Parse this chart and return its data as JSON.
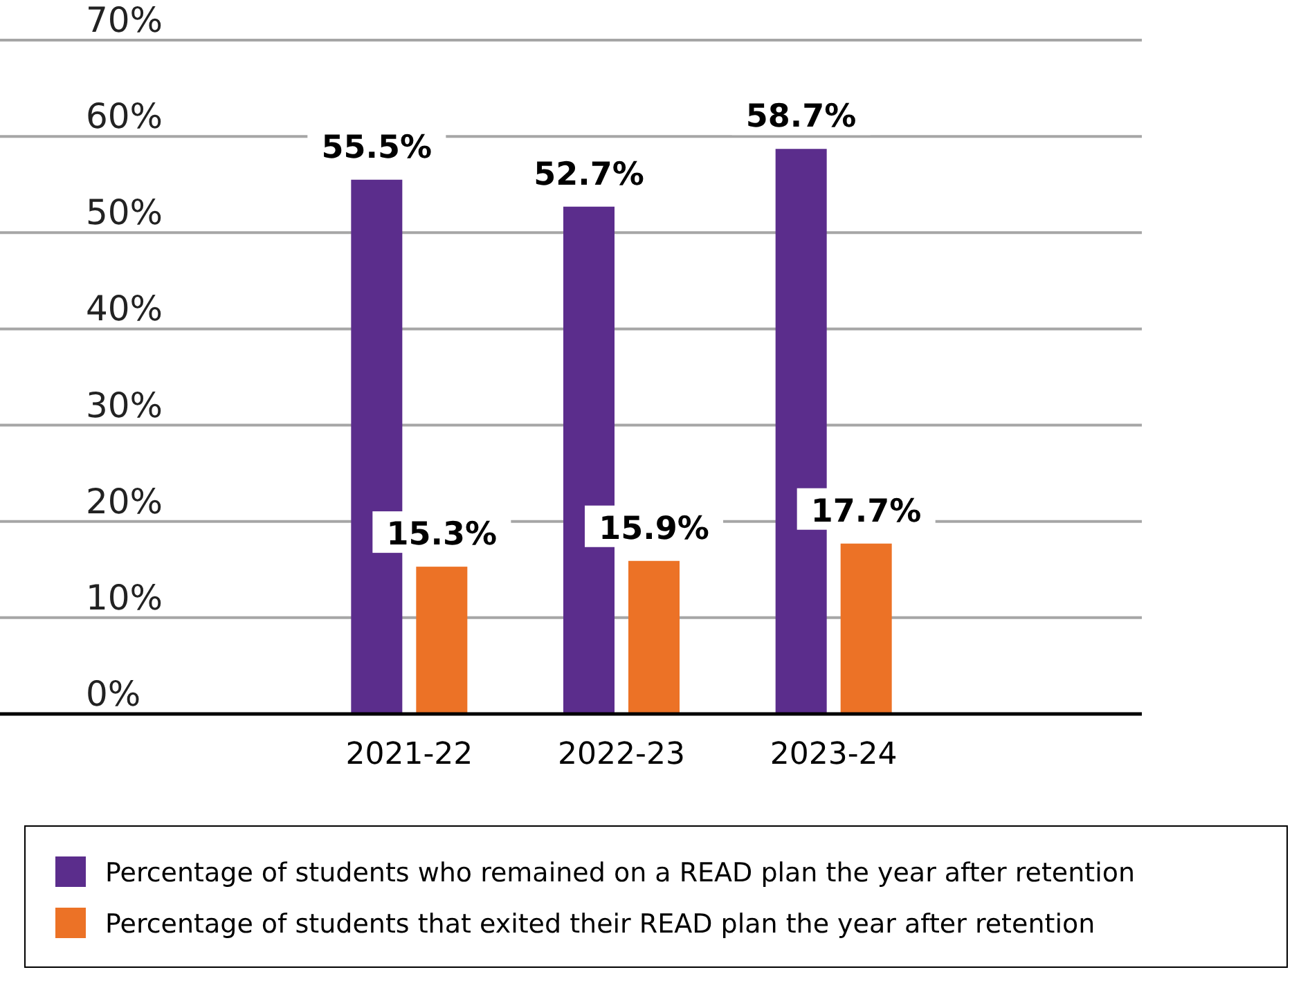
{
  "chart_data": {
    "type": "bar",
    "categories": [
      "2021-22",
      "2022-23",
      "2023-24"
    ],
    "series": [
      {
        "name": "Percentage of students who remained on a READ plan the year after retention",
        "color": "#5b2d8c",
        "values": [
          55.5,
          52.7,
          58.7
        ],
        "value_labels": [
          "55.5%",
          "52.7%",
          "58.7%"
        ]
      },
      {
        "name": "Percentage of students that exited their READ plan the year after retention",
        "color": "#ec7226",
        "values": [
          15.3,
          15.9,
          17.7
        ],
        "value_labels": [
          "15.3%",
          "15.9%",
          "17.7%"
        ]
      }
    ],
    "ylim": [
      0,
      70
    ],
    "yticks": [
      {
        "value": 0,
        "label": "0%"
      },
      {
        "value": 10,
        "label": "10%"
      },
      {
        "value": 20,
        "label": "20%"
      },
      {
        "value": 30,
        "label": "30%"
      },
      {
        "value": 40,
        "label": "40%"
      },
      {
        "value": 50,
        "label": "50%"
      },
      {
        "value": 60,
        "label": "60%"
      },
      {
        "value": 70,
        "label": "70%"
      }
    ],
    "grid": "y",
    "legend": "bottom"
  }
}
